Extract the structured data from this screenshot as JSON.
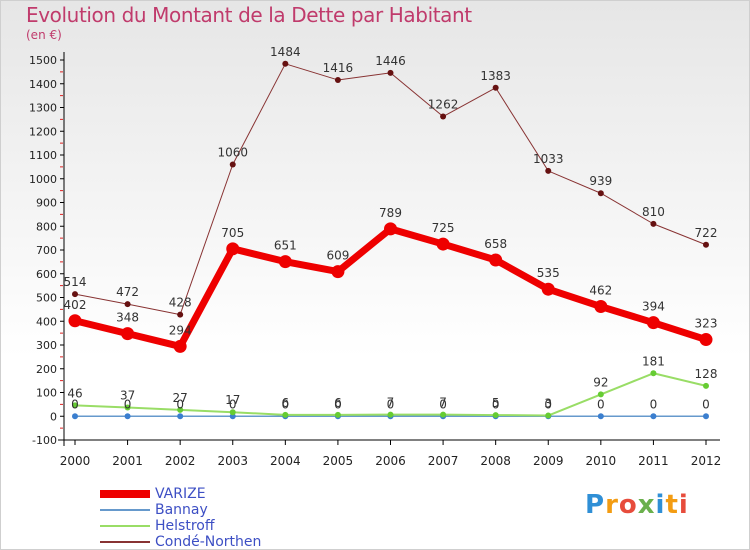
{
  "title": "Evolution du Montant de la Dette par Habitant",
  "unit": "(en €)",
  "brand": {
    "text": "Proxiti",
    "colors": [
      "#2f8fd6",
      "#f39c12",
      "#e74c3c",
      "#6ab04c",
      "#2f8fd6",
      "#f39c12",
      "#e74c3c"
    ]
  },
  "chart_data": {
    "type": "line",
    "title": "Evolution du Montant de la Dette par Habitant",
    "ylabel": "(en €)",
    "x": [
      "2000",
      "2001",
      "2002",
      "2003",
      "2004",
      "2005",
      "2006",
      "2007",
      "2008",
      "2009",
      "2010",
      "2011",
      "2012"
    ],
    "ylim": [
      -100,
      1500
    ],
    "yticks": [
      "-100",
      "0",
      "100",
      "200",
      "300",
      "400",
      "500",
      "600",
      "700",
      "800",
      "900",
      "1000",
      "1100",
      "1200",
      "1300",
      "1400",
      "1500"
    ],
    "grid": false,
    "legend_position": "bottom-left",
    "series": [
      {
        "name": "VARIZE",
        "color": "#ee0000",
        "values": [
          402,
          348,
          294,
          705,
          651,
          609,
          789,
          725,
          658,
          535,
          462,
          394,
          323
        ],
        "labels": [
          "402",
          "348",
          "294",
          "705",
          "651",
          "609",
          "789",
          "725",
          "658",
          "535",
          "462",
          "394",
          "323"
        ]
      },
      {
        "name": "Bannay",
        "color": "#6699cc",
        "values": [
          0,
          0,
          0,
          0,
          0,
          0,
          0,
          0,
          0,
          0,
          0,
          0,
          0
        ],
        "labels": [
          "0",
          "0",
          "0",
          "0",
          "0",
          "0",
          "0",
          "0",
          "0",
          "0",
          "0",
          "0",
          "0"
        ]
      },
      {
        "name": "Helstroff",
        "color": "#99dd66",
        "values": [
          46,
          37,
          27,
          17,
          6,
          6,
          7,
          7,
          5,
          3,
          92,
          181,
          128
        ],
        "labels": [
          "46",
          "37",
          "27",
          "17",
          "6",
          "6",
          "7",
          "7",
          "5",
          "3",
          "92",
          "181",
          "128"
        ]
      },
      {
        "name": "Condé-Northen",
        "color": "#883333",
        "values": [
          514,
          472,
          428,
          1060,
          1484,
          1416,
          1446,
          1262,
          1383,
          1033,
          939,
          810,
          722
        ],
        "labels": [
          "514",
          "472",
          "428",
          "1060",
          "1484",
          "1416",
          "1446",
          "1262",
          "1383",
          "1033",
          "939",
          "810",
          "722"
        ]
      }
    ]
  }
}
